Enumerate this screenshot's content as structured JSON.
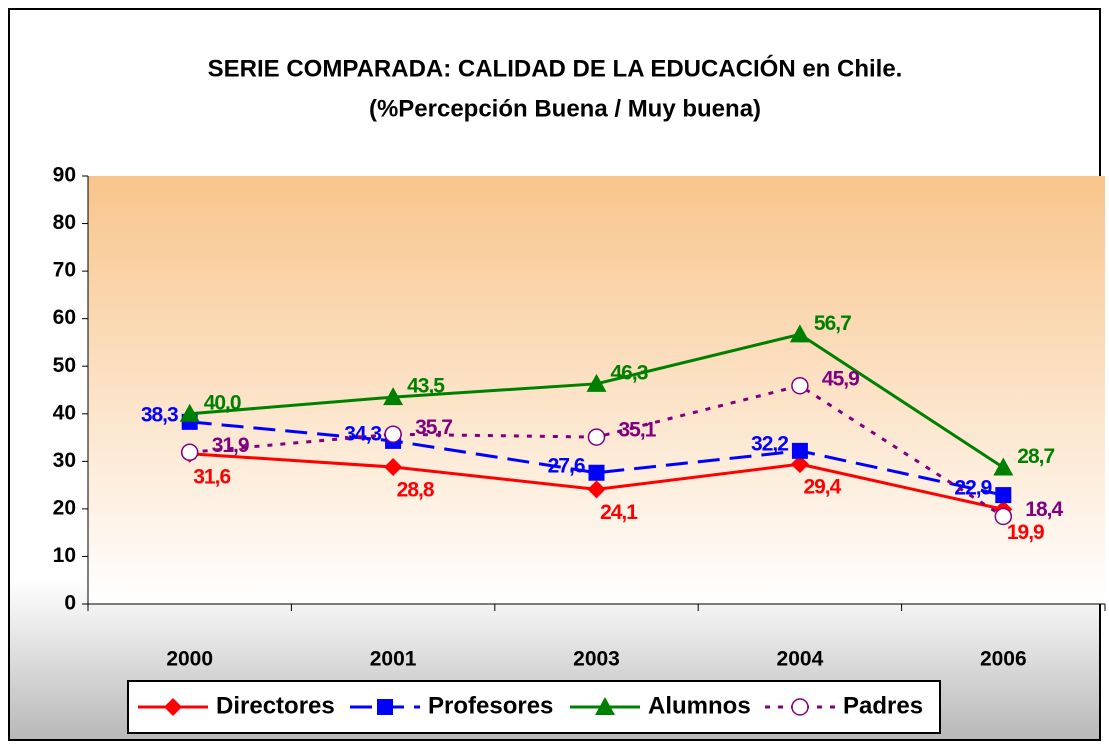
{
  "chart_data": {
    "type": "line",
    "title": "SERIE COMPARADA: CALIDAD DE LA EDUCACIÓN en Chile.",
    "subtitle": "(%Percepción Buena / Muy buena)",
    "categories": [
      "2000",
      "2001",
      "2003",
      "2004",
      "2006"
    ],
    "ylim": [
      0,
      90
    ],
    "yticks": [
      0,
      10,
      20,
      30,
      40,
      50,
      60,
      70,
      80,
      90
    ],
    "legend": "bottom",
    "series": [
      {
        "name": "Directores",
        "color": "#ff0000",
        "dash": "solid",
        "marker": "diamond",
        "values": [
          31.6,
          28.8,
          24.1,
          29.4,
          19.9
        ],
        "value_labels": [
          "31,6",
          "28,8",
          "24,1",
          "29,4",
          "19,9"
        ]
      },
      {
        "name": "Profesores",
        "color": "#0000ff",
        "dash": "dashed",
        "marker": "square",
        "values": [
          38.3,
          34.3,
          27.6,
          32.2,
          22.9
        ],
        "value_labels": [
          "38,3",
          "34,3",
          "27,6",
          "32,2",
          "22,9"
        ]
      },
      {
        "name": "Alumnos",
        "color": "#008000",
        "dash": "solid",
        "marker": "triangle",
        "values": [
          40.0,
          43.5,
          46.3,
          56.7,
          28.7
        ],
        "value_labels": [
          "40,0",
          "43,5",
          "46,3",
          "56,7",
          "28,7"
        ]
      },
      {
        "name": "Padres",
        "color": "#800080",
        "dash": "dotted",
        "marker": "circle",
        "values": [
          31.9,
          35.7,
          35.1,
          45.9,
          18.4
        ],
        "value_labels": [
          "31,9",
          "35,7",
          "35,1",
          "45,9",
          "18,4"
        ]
      }
    ]
  }
}
